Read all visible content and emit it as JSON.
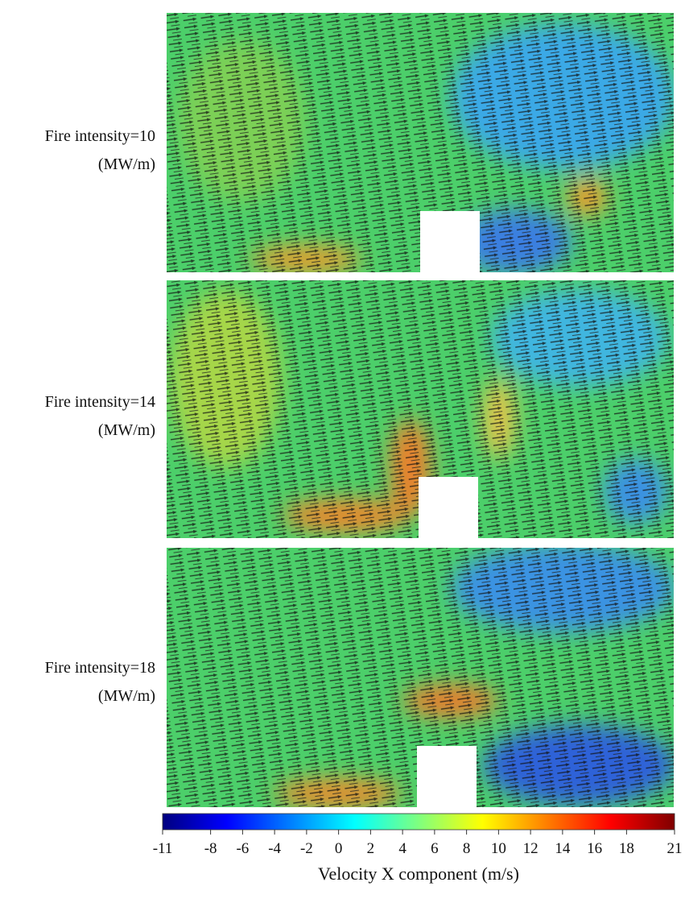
{
  "panels": [
    {
      "label": "Fire intensity=10",
      "unit": "(MW/m)"
    },
    {
      "label": "Fire intensity=14",
      "unit": "(MW/m)"
    },
    {
      "label": "Fire intensity=18",
      "unit": "(MW/m)"
    }
  ],
  "colorbar": {
    "title": "Velocity X component (m/s)",
    "lim": [
      -11,
      21
    ],
    "ticks": [
      -11,
      -8,
      -6,
      -4,
      -2,
      0,
      2,
      4,
      6,
      8,
      10,
      12,
      14,
      16,
      18,
      21
    ],
    "colors": [
      "#00007f",
      "#0000ff",
      "#007fff",
      "#00ffff",
      "#7fff7f",
      "#ffff00",
      "#ff7f00",
      "#ff0000",
      "#7f0000"
    ]
  }
}
